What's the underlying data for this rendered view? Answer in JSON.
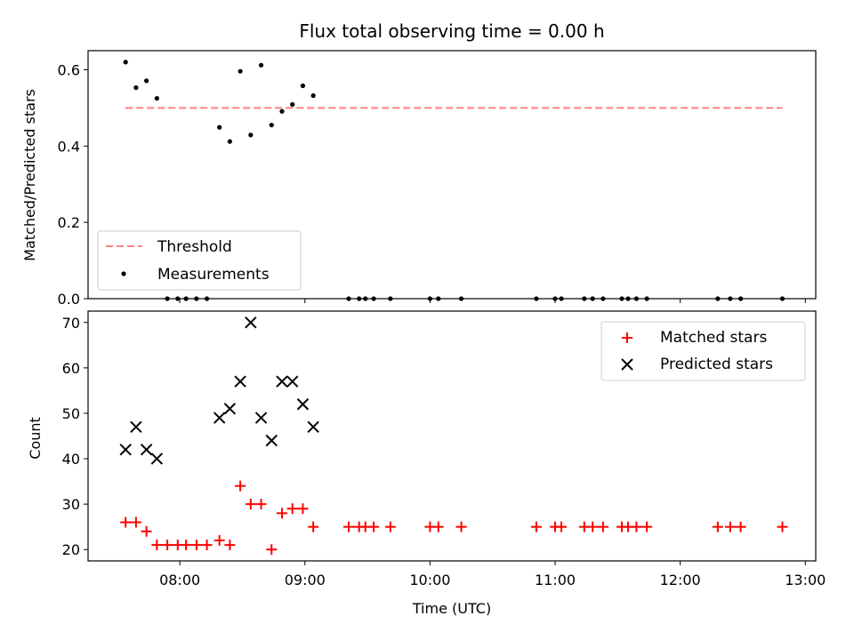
{
  "chart_data": [
    {
      "type": "scatter",
      "title": "Flux total observing time = 0.00 h",
      "ylabel": "Matched/Predicted stars",
      "xlabel": "",
      "ylim": [
        0,
        0.65
      ],
      "yticks": [
        "0.0",
        "0.2",
        "0.4",
        "0.6"
      ],
      "grid": false,
      "legend_position": "bottom-left",
      "threshold": {
        "name": "Threshold",
        "value": 0.5,
        "x_start": "07:34",
        "x_end": "12:49",
        "color": "#ff7f7f"
      },
      "series": [
        {
          "name": "Measurements",
          "color": "#000000",
          "points": [
            [
              "07:34",
              0.62
            ],
            [
              "07:39",
              0.553
            ],
            [
              "07:44",
              0.571
            ],
            [
              "07:49",
              0.525
            ],
            [
              "07:54",
              0.0
            ],
            [
              "07:59",
              0.0
            ],
            [
              "08:03",
              0.0
            ],
            [
              "08:08",
              0.0
            ],
            [
              "08:13",
              0.0
            ],
            [
              "08:19",
              0.449
            ],
            [
              "08:24",
              0.412
            ],
            [
              "08:29",
              0.596
            ],
            [
              "08:34",
              0.429
            ],
            [
              "08:39",
              0.612
            ],
            [
              "08:44",
              0.455
            ],
            [
              "08:49",
              0.491
            ],
            [
              "08:54",
              0.509
            ],
            [
              "08:59",
              0.558
            ],
            [
              "09:04",
              0.532
            ],
            [
              "09:21",
              0.0
            ],
            [
              "09:26",
              0.0
            ],
            [
              "09:29",
              0.0
            ],
            [
              "09:33",
              0.0
            ],
            [
              "09:41",
              0.0
            ],
            [
              "10:00",
              0.0
            ],
            [
              "10:04",
              0.0
            ],
            [
              "10:15",
              0.0
            ],
            [
              "10:51",
              0.0
            ],
            [
              "11:00",
              0.0
            ],
            [
              "11:03",
              0.0
            ],
            [
              "11:14",
              0.0
            ],
            [
              "11:18",
              0.0
            ],
            [
              "11:23",
              0.0
            ],
            [
              "11:32",
              0.0
            ],
            [
              "11:35",
              0.0
            ],
            [
              "11:39",
              0.0
            ],
            [
              "11:44",
              0.0
            ],
            [
              "12:18",
              0.0
            ],
            [
              "12:24",
              0.0
            ],
            [
              "12:29",
              0.0
            ],
            [
              "12:49",
              0.0
            ]
          ]
        }
      ]
    },
    {
      "type": "scatter",
      "title": "",
      "ylabel": "Count",
      "xlabel": "Time (UTC)",
      "ylim": [
        17.5,
        72.5
      ],
      "xlim": [
        "07:16",
        "13:05"
      ],
      "yticks": [
        "20",
        "30",
        "40",
        "50",
        "60",
        "70"
      ],
      "xticks": [
        "08:00",
        "09:00",
        "10:00",
        "11:00",
        "12:00",
        "13:00"
      ],
      "grid": false,
      "legend_position": "top-right",
      "series": [
        {
          "name": "Matched stars",
          "marker": "plus",
          "color": "#ff0000",
          "points": [
            [
              "07:34",
              26
            ],
            [
              "07:39",
              26
            ],
            [
              "07:44",
              24
            ],
            [
              "07:49",
              21
            ],
            [
              "07:54",
              21
            ],
            [
              "07:59",
              21
            ],
            [
              "08:03",
              21
            ],
            [
              "08:08",
              21
            ],
            [
              "08:13",
              21
            ],
            [
              "08:19",
              22
            ],
            [
              "08:24",
              21
            ],
            [
              "08:29",
              34
            ],
            [
              "08:34",
              30
            ],
            [
              "08:39",
              30
            ],
            [
              "08:44",
              20
            ],
            [
              "08:49",
              28
            ],
            [
              "08:54",
              29
            ],
            [
              "08:59",
              29
            ],
            [
              "09:04",
              25
            ],
            [
              "09:21",
              25
            ],
            [
              "09:26",
              25
            ],
            [
              "09:29",
              25
            ],
            [
              "09:33",
              25
            ],
            [
              "09:41",
              25
            ],
            [
              "10:00",
              25
            ],
            [
              "10:04",
              25
            ],
            [
              "10:15",
              25
            ],
            [
              "10:51",
              25
            ],
            [
              "11:00",
              25
            ],
            [
              "11:03",
              25
            ],
            [
              "11:14",
              25
            ],
            [
              "11:18",
              25
            ],
            [
              "11:23",
              25
            ],
            [
              "11:32",
              25
            ],
            [
              "11:35",
              25
            ],
            [
              "11:39",
              25
            ],
            [
              "11:44",
              25
            ],
            [
              "12:18",
              25
            ],
            [
              "12:24",
              25
            ],
            [
              "12:29",
              25
            ],
            [
              "12:49",
              25
            ]
          ]
        },
        {
          "name": "Predicted stars",
          "marker": "x",
          "color": "#000000",
          "points": [
            [
              "07:34",
              42
            ],
            [
              "07:39",
              47
            ],
            [
              "07:44",
              42
            ],
            [
              "07:49",
              40
            ],
            [
              "08:19",
              49
            ],
            [
              "08:24",
              51
            ],
            [
              "08:29",
              57
            ],
            [
              "08:34",
              70
            ],
            [
              "08:39",
              49
            ],
            [
              "08:44",
              44
            ],
            [
              "08:49",
              57
            ],
            [
              "08:54",
              57
            ],
            [
              "08:59",
              52
            ],
            [
              "09:04",
              47
            ]
          ]
        }
      ]
    }
  ]
}
